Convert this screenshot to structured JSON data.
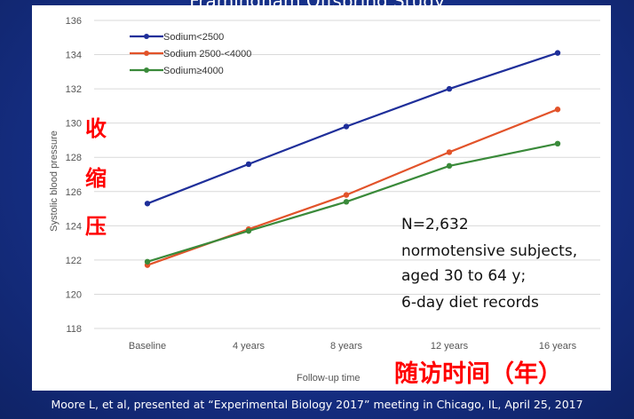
{
  "slide": {
    "title": "Framingham Offspring Study",
    "citation": "Moore L, et al, presented at “Experimental Biology 2017” meeting in Chicago, IL, April 25, 2017"
  },
  "annotations": {
    "y_cn": [
      "收",
      "缩",
      "压"
    ],
    "x_cn": "随访时间（年）",
    "note_lines": [
      "N=2,632",
      "normotensive subjects,",
      "aged 30 to 64 y;",
      "6-day diet records"
    ]
  },
  "colors": {
    "series": [
      "#1f2f9a",
      "#e2532a",
      "#3a8a3a"
    ],
    "grid": "#d9d9d9",
    "text_red": "#ff0000",
    "background": "#162f86"
  },
  "chart_data": {
    "type": "line",
    "title": "",
    "xlabel": "Follow-up time",
    "ylabel": "Systolic blood pressure",
    "categories": [
      "Baseline",
      "4 years",
      "8 years",
      "12 years",
      "16 years"
    ],
    "ylim": [
      118,
      136
    ],
    "yticks": [
      118,
      120,
      122,
      124,
      126,
      128,
      130,
      132,
      134,
      136
    ],
    "grid": true,
    "legend": "top-left",
    "series": [
      {
        "name": "Sodium<2500",
        "values": [
          125.3,
          127.6,
          129.8,
          132.0,
          134.1
        ]
      },
      {
        "name": "Sodium 2500-<4000",
        "values": [
          121.7,
          123.8,
          125.8,
          128.3,
          130.8
        ]
      },
      {
        "name": "Sodium≥4000",
        "values": [
          121.9,
          123.7,
          125.4,
          127.5,
          128.8
        ]
      }
    ]
  }
}
